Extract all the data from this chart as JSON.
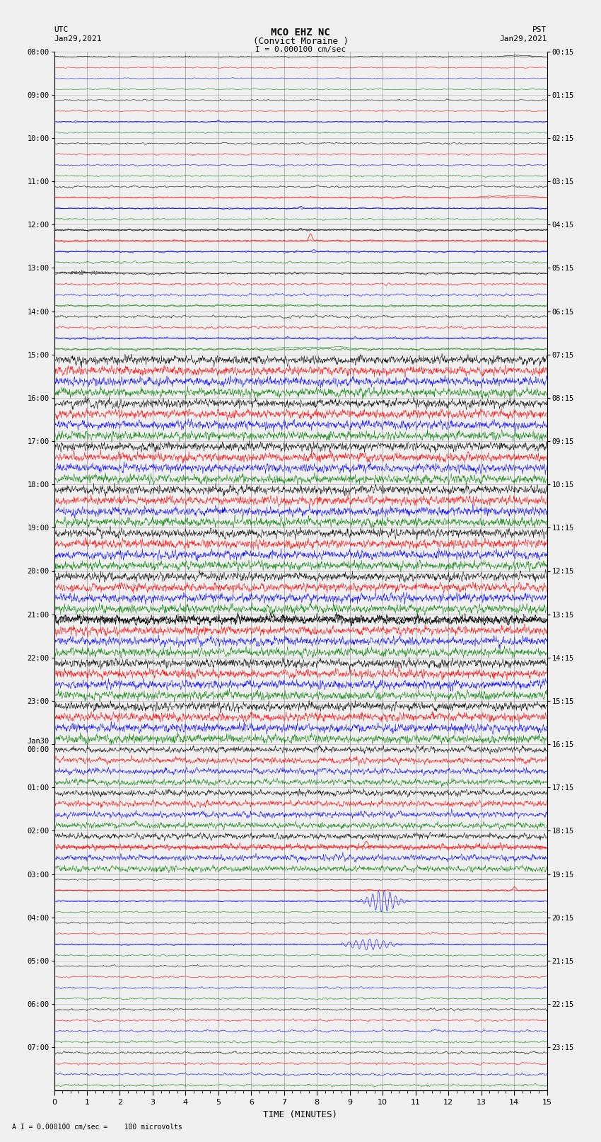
{
  "title_line1": "MCO EHZ NC",
  "title_line2": "(Convict Moraine )",
  "scale_label": "I = 0.000100 cm/sec",
  "bottom_label": "A I = 0.000100 cm/sec =    100 microvolts",
  "utc_label": "UTC",
  "utc_date": "Jan29,2021",
  "pst_label": "PST",
  "pst_date": "Jan29,2021",
  "xlabel": "TIME (MINUTES)",
  "time_min": 0,
  "time_max": 15,
  "left_times": [
    "08:00",
    "09:00",
    "10:00",
    "11:00",
    "12:00",
    "13:00",
    "14:00",
    "15:00",
    "16:00",
    "17:00",
    "18:00",
    "19:00",
    "20:00",
    "21:00",
    "22:00",
    "23:00",
    "Jan30\n00:00",
    "01:00",
    "02:00",
    "03:00",
    "04:00",
    "05:00",
    "06:00",
    "07:00"
  ],
  "right_times": [
    "00:15",
    "01:15",
    "02:15",
    "03:15",
    "04:15",
    "05:15",
    "06:15",
    "07:15",
    "08:15",
    "09:15",
    "10:15",
    "11:15",
    "12:15",
    "13:15",
    "14:15",
    "15:15",
    "16:15",
    "17:15",
    "18:15",
    "19:15",
    "20:15",
    "21:15",
    "22:15",
    "23:15"
  ],
  "n_rows": 24,
  "traces_per_row": 4,
  "fig_width": 8.5,
  "fig_height": 16.13,
  "bg_color": "#f0f0f0",
  "trace_color_cycle": [
    "black",
    "red",
    "blue",
    "green"
  ],
  "grid_color": "#999999",
  "row_sep_color": "#aaaaaa"
}
